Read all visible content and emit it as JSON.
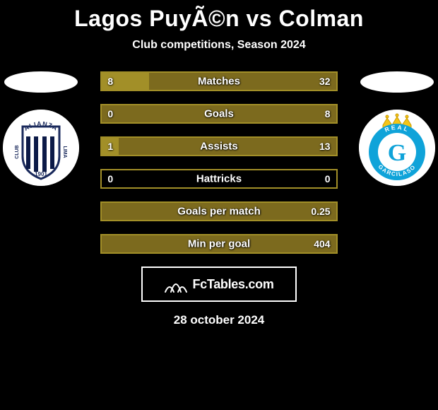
{
  "title": "Lagos PuyÃ©n vs Colman",
  "subtitle": "Club competitions, Season 2024",
  "left_color": "#a28f28",
  "right_color": "#7c6a1e",
  "border_color": "#a28f28",
  "stats": [
    {
      "label": "Matches",
      "left_val": "8",
      "right_val": "32",
      "left_pct": 20,
      "right_pct": 80
    },
    {
      "label": "Goals",
      "left_val": "0",
      "right_val": "8",
      "left_pct": 0,
      "right_pct": 100
    },
    {
      "label": "Assists",
      "left_val": "1",
      "right_val": "13",
      "left_pct": 7.1,
      "right_pct": 92.9
    },
    {
      "label": "Hattricks",
      "left_val": "0",
      "right_val": "0",
      "left_pct": 0,
      "right_pct": 0
    },
    {
      "label": "Goals per match",
      "left_val": "",
      "right_val": "0.25",
      "left_pct": 0,
      "right_pct": 100
    },
    {
      "label": "Min per goal",
      "left_val": "",
      "right_val": "404",
      "left_pct": 0,
      "right_pct": 100
    }
  ],
  "brand": "FcTables.com",
  "date": "28 october 2024",
  "crest_left": {
    "outer_bg": "#ffffff",
    "shield_border": "#1a2a5c",
    "stripe_dark": "#0c1a47",
    "stripe_light": "#ffffff",
    "arc_text_top": "ALIANZA",
    "arc_text_bottom": "LIMA",
    "center_text": "CLUB",
    "year": "1901"
  },
  "crest_right": {
    "outer_bg": "#ffffff",
    "ring_color": "#0fa3d9",
    "ring_inner": "#ffffff",
    "crown_color": "#f5c518",
    "letter": "G",
    "letter_color": "#0fa3d9",
    "ring_text": "REAL  GARCILASO"
  }
}
